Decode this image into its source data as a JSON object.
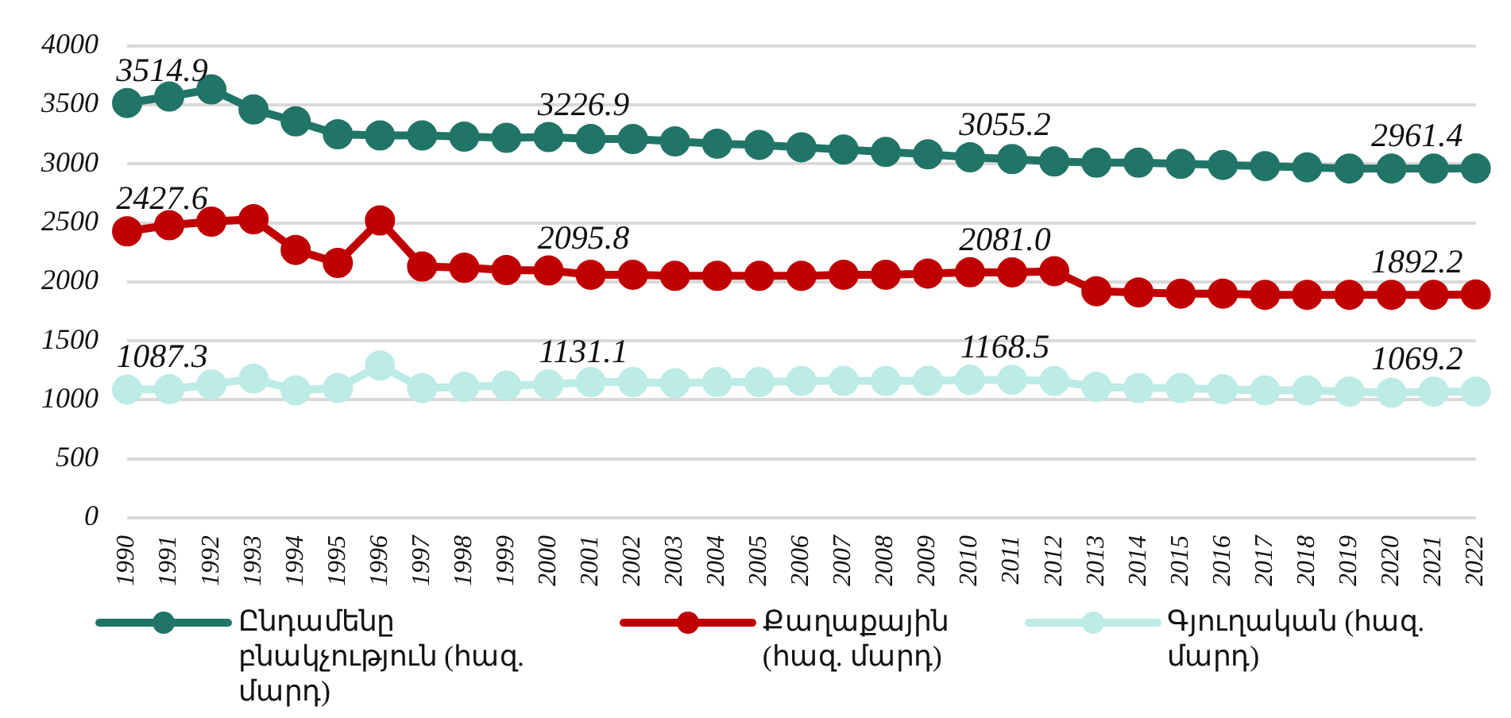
{
  "chart_data": {
    "type": "line",
    "categories": [
      "1990",
      "1991",
      "1992",
      "1993",
      "1994",
      "1995",
      "1996",
      "1997",
      "1998",
      "1999",
      "2000",
      "2001",
      "2002",
      "2003",
      "2004",
      "2005",
      "2006",
      "2007",
      "2008",
      "2009",
      "2010",
      "2011",
      "2012",
      "2013",
      "2014",
      "2015",
      "2016",
      "2017",
      "2018",
      "2019",
      "2020",
      "2021",
      "2022"
    ],
    "series": [
      {
        "name": "Ընդամենը բնակչություն (հազ. մարդ)",
        "color": "#217567",
        "values": [
          3514.9,
          3570,
          3630,
          3460,
          3360,
          3250,
          3240,
          3240,
          3230,
          3220,
          3226.9,
          3210,
          3210,
          3190,
          3170,
          3160,
          3140,
          3120,
          3100,
          3080,
          3055.2,
          3040,
          3020,
          3010,
          3010,
          3000,
          2990,
          2980,
          2970,
          2960,
          2960,
          2960,
          2961.4
        ],
        "value_labels": [
          "3514.9",
          null,
          null,
          null,
          null,
          null,
          null,
          null,
          null,
          null,
          "3226.9",
          null,
          null,
          null,
          null,
          null,
          null,
          null,
          null,
          null,
          "3055.2",
          null,
          null,
          null,
          null,
          null,
          null,
          null,
          null,
          null,
          null,
          null,
          "2961.4"
        ]
      },
      {
        "name": "Քաղաքային (հազ. մարդ)",
        "color": "#c00000",
        "values": [
          2427.6,
          2480,
          2510,
          2530,
          2270,
          2160,
          2520,
          2130,
          2120,
          2100,
          2095.8,
          2060,
          2060,
          2050,
          2050,
          2050,
          2050,
          2060,
          2060,
          2070,
          2081.0,
          2080,
          2090,
          1920,
          1910,
          1900,
          1900,
          1890,
          1890,
          1890,
          1890,
          1890,
          1892.2
        ],
        "value_labels": [
          "2427.6",
          null,
          null,
          null,
          null,
          null,
          null,
          null,
          null,
          null,
          "2095.8",
          null,
          null,
          null,
          null,
          null,
          null,
          null,
          null,
          null,
          "2081.0",
          null,
          null,
          null,
          null,
          null,
          null,
          null,
          null,
          null,
          null,
          null,
          "1892.2"
        ]
      },
      {
        "name": "Գյուղական (հազ. մարդ)",
        "color": "#bdebe6",
        "values": [
          1087.3,
          1090,
          1130,
          1180,
          1080,
          1100,
          1290,
          1100,
          1110,
          1120,
          1131.1,
          1150,
          1150,
          1140,
          1150,
          1150,
          1160,
          1160,
          1160,
          1160,
          1168.5,
          1170,
          1160,
          1110,
          1100,
          1100,
          1090,
          1080,
          1080,
          1070,
          1060,
          1070,
          1069.2
        ],
        "value_labels": [
          "1087.3",
          null,
          null,
          null,
          null,
          null,
          null,
          null,
          null,
          null,
          "1131.1",
          null,
          null,
          null,
          null,
          null,
          null,
          null,
          null,
          null,
          "1168.5",
          null,
          null,
          null,
          null,
          null,
          null,
          null,
          null,
          null,
          null,
          null,
          "1069.2"
        ]
      }
    ],
    "ylim": [
      0,
      4000
    ],
    "yticks": [
      0,
      500,
      1000,
      1500,
      2000,
      2500,
      3000,
      3500,
      4000
    ],
    "grid": "y",
    "legend": "bottom",
    "marker": "circle",
    "line_style": "solid"
  }
}
